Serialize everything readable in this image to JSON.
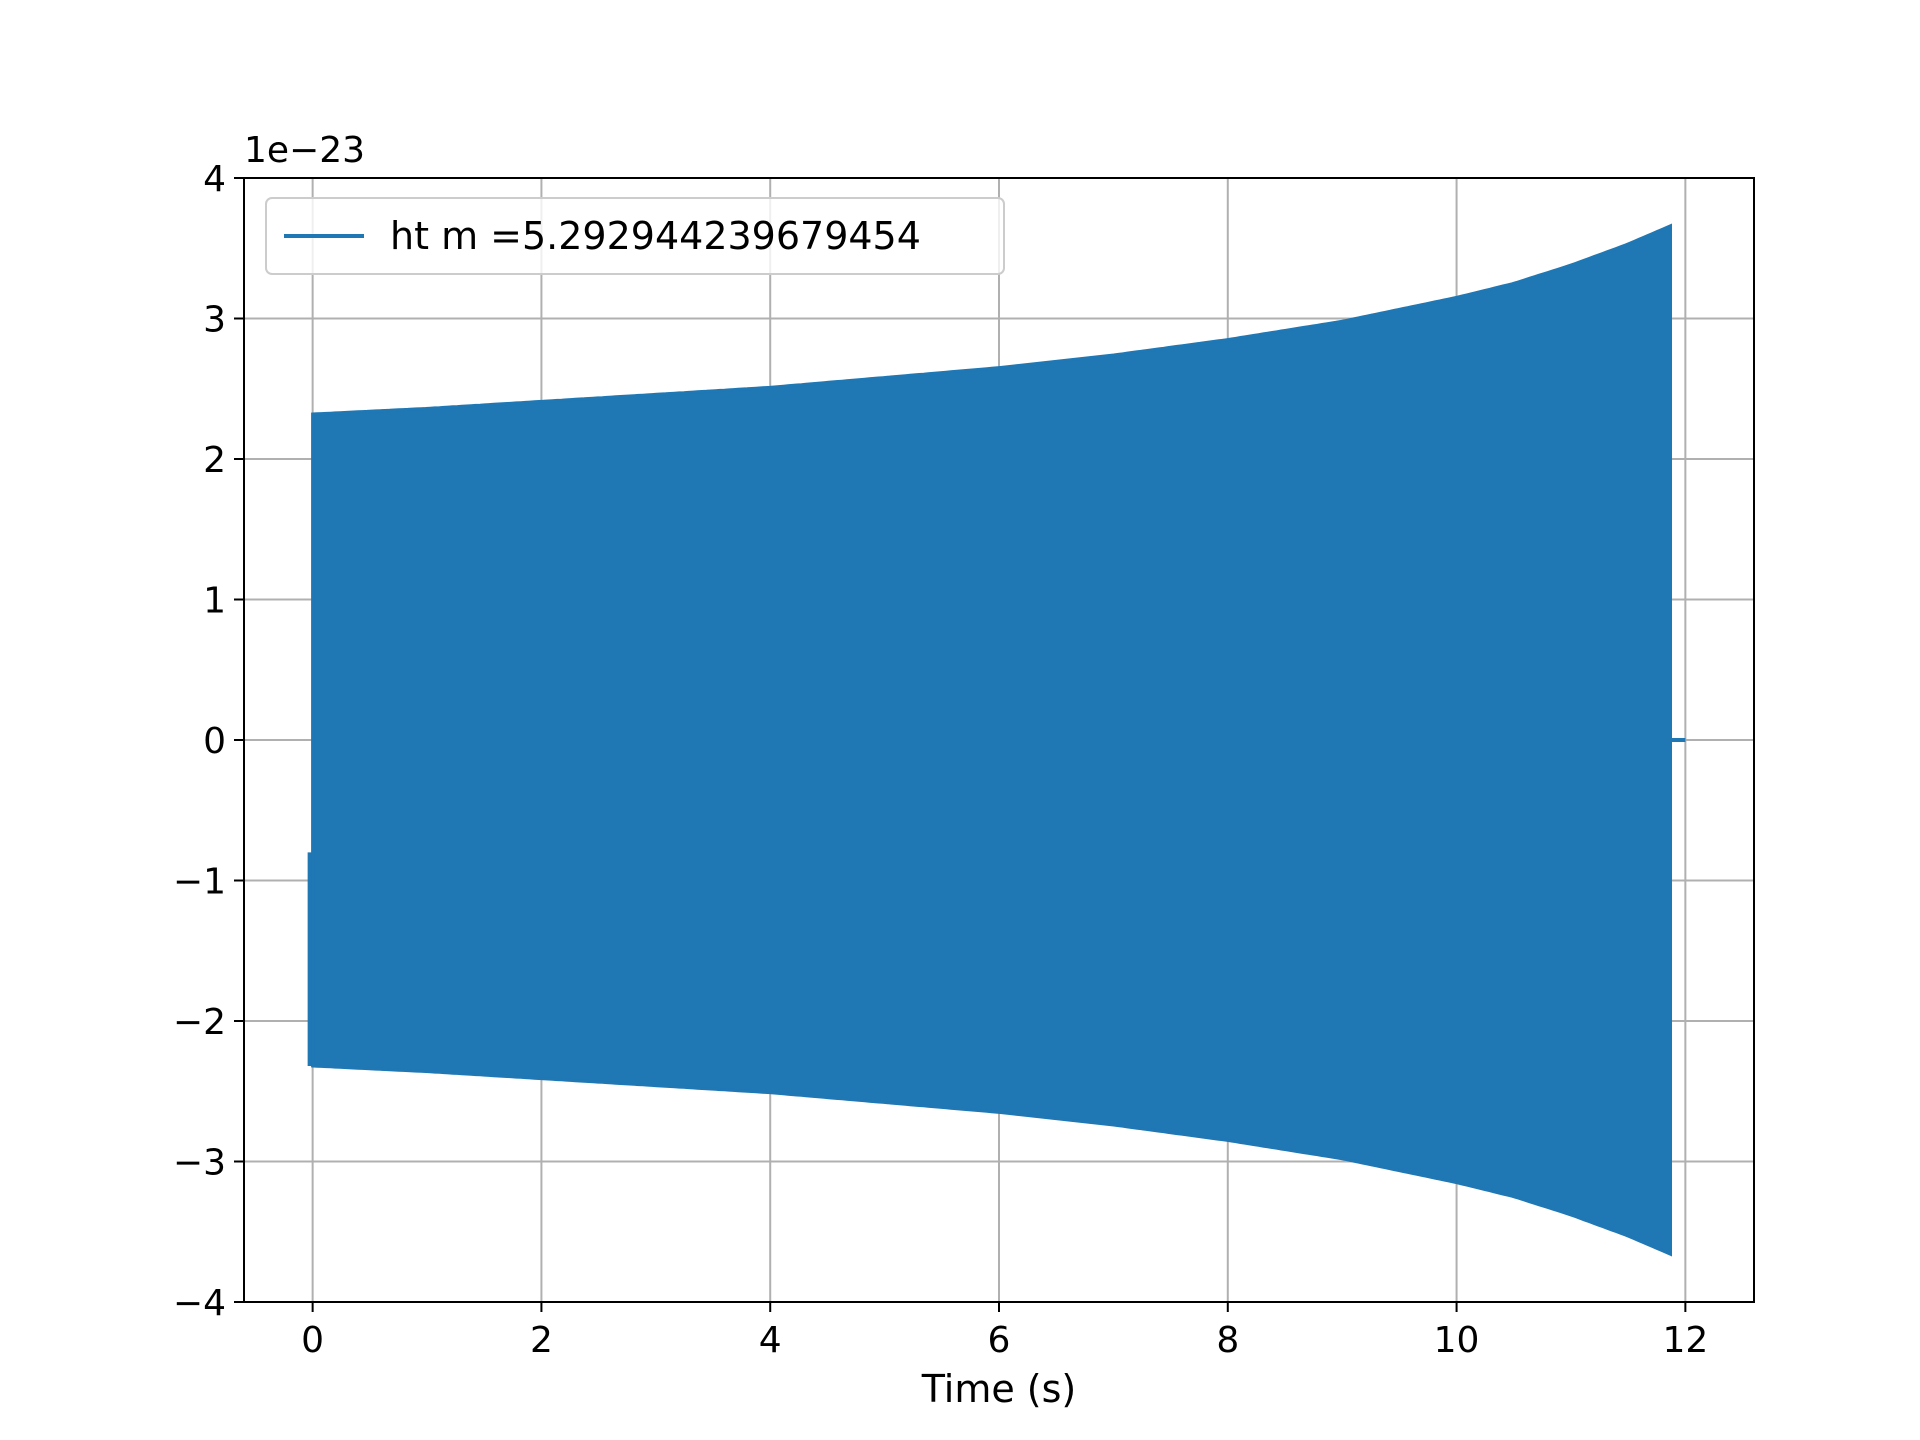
{
  "chart_data": {
    "type": "line",
    "title": "",
    "xlabel": "Time (s)",
    "ylabel": "",
    "y_offset_text": "1e−23",
    "xlim": [
      -0.6,
      12.6
    ],
    "ylim": [
      -4,
      4
    ],
    "grid": true,
    "legend_position": "upper left",
    "x_ticks": [
      0,
      2,
      4,
      6,
      8,
      10,
      12
    ],
    "x_tick_labels": [
      "0",
      "2",
      "4",
      "6",
      "8",
      "10",
      "12"
    ],
    "y_ticks": [
      -4,
      -3,
      -2,
      -1,
      0,
      1,
      2,
      3,
      4
    ],
    "y_tick_labels": [
      "−4",
      "−3",
      "−2",
      "−1",
      "0",
      "1",
      "2",
      "3",
      "4"
    ],
    "series": [
      {
        "name": "ht m =5.292944239679454",
        "color": "#1f77b4",
        "style": "dense oscillation (chirp) filling envelope",
        "t_start": 0.0,
        "t_end": 11.87,
        "t_zero_tail_end": 12.0,
        "envelope": {
          "t": [
            0,
            1,
            2,
            3,
            4,
            5,
            6,
            7,
            8,
            9,
            10,
            10.5,
            11,
            11.5,
            11.87
          ],
          "amplitude": [
            2.32,
            2.36,
            2.41,
            2.46,
            2.51,
            2.58,
            2.65,
            2.74,
            2.85,
            2.98,
            3.15,
            3.25,
            3.38,
            3.53,
            3.66
          ]
        },
        "initial_min": -0.8,
        "final_value": 0
      }
    ]
  }
}
